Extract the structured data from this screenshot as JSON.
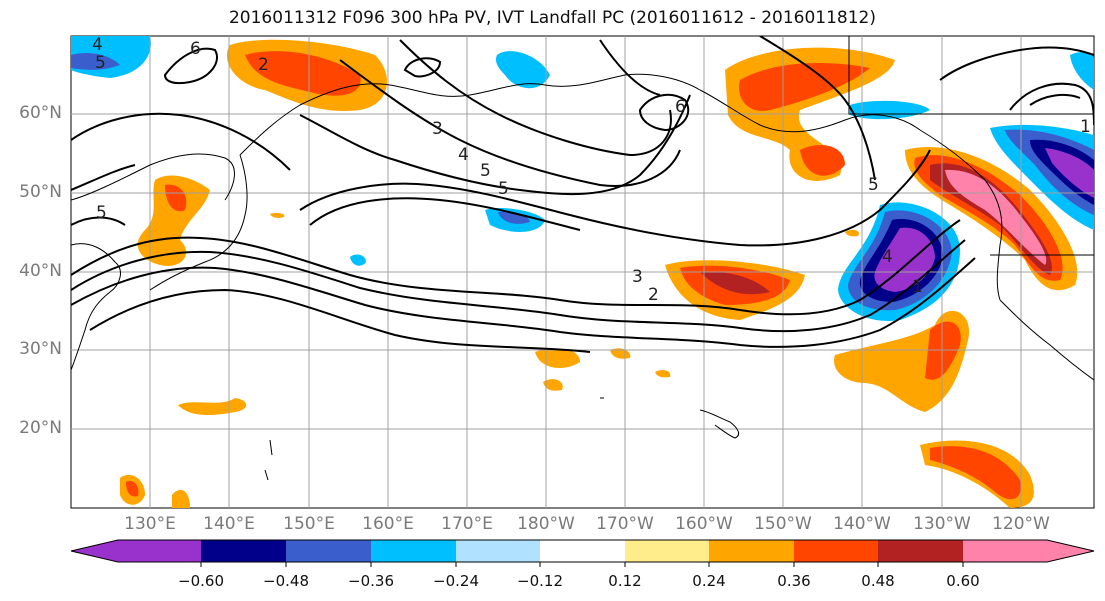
{
  "title": "2016011312 F096 300 hPa PV, IVT Landfall PC (2016011612 - 2016011812)",
  "map": {
    "projection_extent": {
      "lon_min": 120,
      "lon_max": 250,
      "lat_min": 10,
      "lat_max": 70
    },
    "lon_labels": [
      "130°E",
      "140°E",
      "150°E",
      "160°E",
      "170°E",
      "180°W",
      "170°W",
      "160°W",
      "150°W",
      "140°W",
      "130°W",
      "120°W"
    ],
    "lat_labels": [
      "60°N",
      "50°N",
      "40°N",
      "30°N",
      "20°N"
    ],
    "contour_labels": [
      "4",
      "5",
      "6",
      "2",
      "3",
      "4",
      "5",
      "5",
      "6",
      "3",
      "2",
      "5",
      "4",
      "1",
      "1",
      "5"
    ]
  },
  "colorbar": {
    "ticks": [
      "−0.60",
      "−0.48",
      "−0.36",
      "−0.24",
      "−0.12",
      "0.12",
      "0.24",
      "0.36",
      "0.48",
      "0.60"
    ],
    "colors": [
      "#9932CC",
      "#00008B",
      "#3A5FCD",
      "#00BFFF",
      "#B0E2FF",
      "#FFFFFF",
      "#FFEC8B",
      "#FFA500",
      "#FF4500",
      "#B22222",
      "#FF82AB"
    ]
  }
}
